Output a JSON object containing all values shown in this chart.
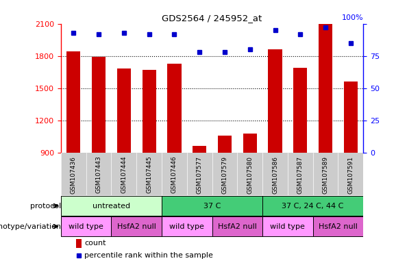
{
  "title": "GDS2564 / 245952_at",
  "samples": [
    "GSM107436",
    "GSM107443",
    "GSM107444",
    "GSM107445",
    "GSM107446",
    "GSM107577",
    "GSM107579",
    "GSM107580",
    "GSM107586",
    "GSM107587",
    "GSM107589",
    "GSM107591"
  ],
  "counts": [
    1840,
    1790,
    1680,
    1670,
    1730,
    960,
    1060,
    1080,
    1860,
    1690,
    2100,
    1560
  ],
  "percentile": [
    93,
    92,
    93,
    92,
    92,
    78,
    78,
    80,
    95,
    92,
    97,
    85
  ],
  "ylim_left": [
    900,
    2100
  ],
  "ylim_right": [
    0,
    100
  ],
  "yticks_left": [
    900,
    1200,
    1500,
    1800,
    2100
  ],
  "yticks_right": [
    0,
    25,
    50,
    75,
    100
  ],
  "bar_color": "#CC0000",
  "dot_color": "#0000CC",
  "protocols": [
    {
      "label": "untreated",
      "span": [
        0,
        4
      ],
      "color": "#CCFFCC"
    },
    {
      "label": "37 C",
      "span": [
        4,
        8
      ],
      "color": "#44CC77"
    },
    {
      "label": "37 C, 24 C, 44 C",
      "span": [
        8,
        12
      ],
      "color": "#44CC77"
    }
  ],
  "genotypes": [
    {
      "label": "wild type",
      "span": [
        0,
        2
      ],
      "color": "#FF99FF"
    },
    {
      "label": "HsfA2 null",
      "span": [
        2,
        4
      ],
      "color": "#DD66CC"
    },
    {
      "label": "wild type",
      "span": [
        4,
        6
      ],
      "color": "#FF99FF"
    },
    {
      "label": "HsfA2 null",
      "span": [
        6,
        8
      ],
      "color": "#DD66CC"
    },
    {
      "label": "wild type",
      "span": [
        8,
        10
      ],
      "color": "#FF99FF"
    },
    {
      "label": "HsfA2 null",
      "span": [
        10,
        12
      ],
      "color": "#DD66CC"
    }
  ],
  "protocol_label": "protocol",
  "genotype_label": "genotype/variation",
  "legend_count": "count",
  "legend_pct": "percentile rank within the sample",
  "bg_color": "#FFFFFF",
  "tick_area_color": "#CCCCCC",
  "grid_color": "#000000",
  "pct_label": "100%"
}
